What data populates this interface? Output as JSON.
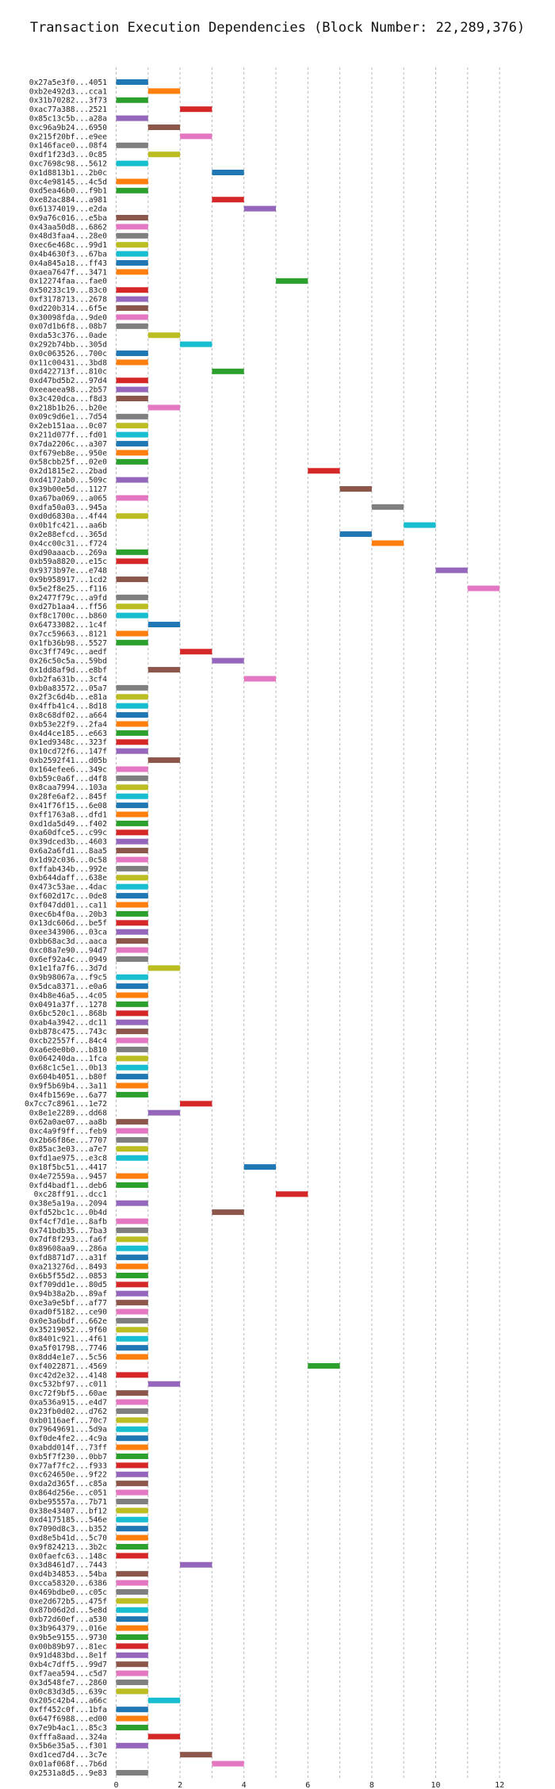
{
  "chart_data": {
    "type": "bar",
    "orientation": "horizontal",
    "title": "Transaction Execution Dependencies (Block Number: 22,289,376)",
    "xlabel": "",
    "ylabel": "",
    "xlim": [
      -0.7,
      12.8
    ],
    "xticks": [
      0,
      2,
      4,
      6,
      8,
      10,
      12
    ],
    "grid": true,
    "colors": [
      "#1f77b4",
      "#ff7f0e",
      "#2ca02c",
      "#d62728",
      "#9467bd",
      "#8c564b",
      "#e377c2",
      "#7f7f7f",
      "#bcbd22",
      "#17becf"
    ],
    "bars": [
      {
        "label": "0x27a5e3f0...4051",
        "start": 0,
        "end": 1
      },
      {
        "label": "0xb2e492d3...cca1",
        "start": 1,
        "end": 2
      },
      {
        "label": "0x31b70282...3f73",
        "start": 0,
        "end": 1
      },
      {
        "label": "0xac77a388...2521",
        "start": 2,
        "end": 3
      },
      {
        "label": "0x85c13c5b...a28a",
        "start": 0,
        "end": 1
      },
      {
        "label": "0xc96a9b24...6950",
        "start": 1,
        "end": 2
      },
      {
        "label": "0x215f20bf...e9ee",
        "start": 2,
        "end": 3
      },
      {
        "label": "0x146face0...08f4",
        "start": 0,
        "end": 1
      },
      {
        "label": "0xdf1f23d3...0c85",
        "start": 1,
        "end": 2
      },
      {
        "label": "0xc7698c98...5612",
        "start": 0,
        "end": 1
      },
      {
        "label": "0x1d8813b1...2b0c",
        "start": 3,
        "end": 4
      },
      {
        "label": "0xc4e98145...4c5d",
        "start": 0,
        "end": 1
      },
      {
        "label": "0xd5ea46b0...f9b1",
        "start": 0,
        "end": 1
      },
      {
        "label": "0xe82ac884...a981",
        "start": 3,
        "end": 4
      },
      {
        "label": "0x61374019...e2da",
        "start": 4,
        "end": 5
      },
      {
        "label": "0x9a76c016...e5ba",
        "start": 0,
        "end": 1
      },
      {
        "label": "0x43aa50d8...6862",
        "start": 0,
        "end": 1
      },
      {
        "label": "0x48d3faa4...28e0",
        "start": 0,
        "end": 1
      },
      {
        "label": "0xec6e468c...99d1",
        "start": 0,
        "end": 1
      },
      {
        "label": "0x4b4630f3...67ba",
        "start": 0,
        "end": 1
      },
      {
        "label": "0x4a845a18...ff43",
        "start": 0,
        "end": 1
      },
      {
        "label": "0xaea7647f...3471",
        "start": 0,
        "end": 1
      },
      {
        "label": "0x12274faa...fae0",
        "start": 5,
        "end": 6
      },
      {
        "label": "0x50233c19...83c0",
        "start": 0,
        "end": 1
      },
      {
        "label": "0xf3178713...2678",
        "start": 0,
        "end": 1
      },
      {
        "label": "0xd220b314...6f5e",
        "start": 0,
        "end": 1
      },
      {
        "label": "0x30098fda...9de0",
        "start": 0,
        "end": 1
      },
      {
        "label": "0x07d1b6f8...08b7",
        "start": 0,
        "end": 1
      },
      {
        "label": "0xda53c376...0ade",
        "start": 1,
        "end": 2
      },
      {
        "label": "0x292b74bb...305d",
        "start": 2,
        "end": 3
      },
      {
        "label": "0x0c063526...700c",
        "start": 0,
        "end": 1
      },
      {
        "label": "0x11c00431...3bd8",
        "start": 0,
        "end": 1
      },
      {
        "label": "0xd422713f...810c",
        "start": 3,
        "end": 4
      },
      {
        "label": "0xd47bd5b2...97d4",
        "start": 0,
        "end": 1
      },
      {
        "label": "0xeeaeea98...2b57",
        "start": 0,
        "end": 1
      },
      {
        "label": "0x3c420dca...f8d3",
        "start": 0,
        "end": 1
      },
      {
        "label": "0x218b1b26...b20e",
        "start": 1,
        "end": 2
      },
      {
        "label": "0x09c9d6e1...7d54",
        "start": 0,
        "end": 1
      },
      {
        "label": "0x2eb151aa...0c07",
        "start": 0,
        "end": 1
      },
      {
        "label": "0x211d077f...fd01",
        "start": 0,
        "end": 1
      },
      {
        "label": "0x7da2206c...a307",
        "start": 0,
        "end": 1
      },
      {
        "label": "0xf679eb8e...950e",
        "start": 0,
        "end": 1
      },
      {
        "label": "0x58cbb25f...02e0",
        "start": 0,
        "end": 1
      },
      {
        "label": "0x2d1815e2...2bad",
        "start": 6,
        "end": 7
      },
      {
        "label": "0xd4172ab0...509c",
        "start": 0,
        "end": 1
      },
      {
        "label": "0x39b00e5d...1127",
        "start": 7,
        "end": 8
      },
      {
        "label": "0xa67ba069...a065",
        "start": 0,
        "end": 1
      },
      {
        "label": "0xdfa50a03...945a",
        "start": 8,
        "end": 9
      },
      {
        "label": "0xd0d6830a...4f44",
        "start": 0,
        "end": 1
      },
      {
        "label": "0x0b1fc421...aa6b",
        "start": 9,
        "end": 10
      },
      {
        "label": "0x2e88efcd...365d",
        "start": 7,
        "end": 8
      },
      {
        "label": "0x4cc00c31...f724",
        "start": 8,
        "end": 9
      },
      {
        "label": "0xd90aaacb...269a",
        "start": 0,
        "end": 1
      },
      {
        "label": "0xb59a8820...e15c",
        "start": 0,
        "end": 1
      },
      {
        "label": "0x9373b97e...e748",
        "start": 10,
        "end": 11
      },
      {
        "label": "0x9b958917...1cd2",
        "start": 0,
        "end": 1
      },
      {
        "label": "0x5e2f8e25...f116",
        "start": 11,
        "end": 12
      },
      {
        "label": "0x2477f79c...a9fd",
        "start": 0,
        "end": 1
      },
      {
        "label": "0xd27b1aa4...ff56",
        "start": 0,
        "end": 1
      },
      {
        "label": "0xf8c1700c...b860",
        "start": 0,
        "end": 1
      },
      {
        "label": "0x64733082...1c4f",
        "start": 1,
        "end": 2
      },
      {
        "label": "0x7cc59663...8121",
        "start": 0,
        "end": 1
      },
      {
        "label": "0x1fb36b98...5527",
        "start": 0,
        "end": 1
      },
      {
        "label": "0xc3ff749c...aedf",
        "start": 2,
        "end": 3
      },
      {
        "label": "0x26c50c5a...59bd",
        "start": 3,
        "end": 4
      },
      {
        "label": "0x1dd8af9d...e8bf",
        "start": 1,
        "end": 2
      },
      {
        "label": "0xb2fa631b...3cf4",
        "start": 4,
        "end": 5
      },
      {
        "label": "0xb0a83572...05a7",
        "start": 0,
        "end": 1
      },
      {
        "label": "0x2f3c6d4b...e81a",
        "start": 0,
        "end": 1
      },
      {
        "label": "0x4ffb41c4...8d18",
        "start": 0,
        "end": 1
      },
      {
        "label": "0x8c68df02...a664",
        "start": 0,
        "end": 1
      },
      {
        "label": "0xb53e22f9...2fa4",
        "start": 0,
        "end": 1
      },
      {
        "label": "0x4d4ce185...e663",
        "start": 0,
        "end": 1
      },
      {
        "label": "0x1ed9348c...323f",
        "start": 0,
        "end": 1
      },
      {
        "label": "0x10cd72f6...147f",
        "start": 0,
        "end": 1
      },
      {
        "label": "0xb2592f41...d05b",
        "start": 1,
        "end": 2
      },
      {
        "label": "0x164efee6...349c",
        "start": 0,
        "end": 1
      },
      {
        "label": "0xb59c0a6f...d4f8",
        "start": 0,
        "end": 1
      },
      {
        "label": "0x8caa7994...103a",
        "start": 0,
        "end": 1
      },
      {
        "label": "0x28fe6af2...845f",
        "start": 0,
        "end": 1
      },
      {
        "label": "0x41f76f15...6e08",
        "start": 0,
        "end": 1
      },
      {
        "label": "0xff1763a8...dfd1",
        "start": 0,
        "end": 1
      },
      {
        "label": "0xd1da5d49...f402",
        "start": 0,
        "end": 1
      },
      {
        "label": "0xa60dfce5...c99c",
        "start": 0,
        "end": 1
      },
      {
        "label": "0x39dced3b...4603",
        "start": 0,
        "end": 1
      },
      {
        "label": "0x6a2a6fd1...8aa5",
        "start": 0,
        "end": 1
      },
      {
        "label": "0x1d92c036...0c58",
        "start": 0,
        "end": 1
      },
      {
        "label": "0xffab434b...992e",
        "start": 0,
        "end": 1
      },
      {
        "label": "0xb644daff...638e",
        "start": 0,
        "end": 1
      },
      {
        "label": "0x473c53ae...4dac",
        "start": 0,
        "end": 1
      },
      {
        "label": "0xf602d17c...0de8",
        "start": 0,
        "end": 1
      },
      {
        "label": "0xf047dd01...ca11",
        "start": 0,
        "end": 1
      },
      {
        "label": "0xec6b4f0a...20b3",
        "start": 0,
        "end": 1
      },
      {
        "label": "0x13dc606d...be5f",
        "start": 0,
        "end": 1
      },
      {
        "label": "0xee343906...03ca",
        "start": 0,
        "end": 1
      },
      {
        "label": "0xbb68ac3d...aaca",
        "start": 0,
        "end": 1
      },
      {
        "label": "0xc08a7e90...94d7",
        "start": 0,
        "end": 1
      },
      {
        "label": "0x6ef92a4c...0949",
        "start": 0,
        "end": 1
      },
      {
        "label": "0x1e1fa7f6...3d7d",
        "start": 1,
        "end": 2
      },
      {
        "label": "0x9b98067a...f9c5",
        "start": 0,
        "end": 1
      },
      {
        "label": "0x5dca8371...e0a6",
        "start": 0,
        "end": 1
      },
      {
        "label": "0x4b8e46a5...4c05",
        "start": 0,
        "end": 1
      },
      {
        "label": "0x0491a37f...1278",
        "start": 0,
        "end": 1
      },
      {
        "label": "0x6bc520c1...868b",
        "start": 0,
        "end": 1
      },
      {
        "label": "0xab4a3942...dc11",
        "start": 0,
        "end": 1
      },
      {
        "label": "0xb878c475...743c",
        "start": 0,
        "end": 1
      },
      {
        "label": "0xcb22557f...84c4",
        "start": 0,
        "end": 1
      },
      {
        "label": "0xa6e0e0b0...b810",
        "start": 0,
        "end": 1
      },
      {
        "label": "0x064240da...1fca",
        "start": 0,
        "end": 1
      },
      {
        "label": "0x68c1c5e1...0b13",
        "start": 0,
        "end": 1
      },
      {
        "label": "0x604b4051...b80f",
        "start": 0,
        "end": 1
      },
      {
        "label": "0x9f5b69b4...3a11",
        "start": 0,
        "end": 1
      },
      {
        "label": "0x4fb1569e...6a77",
        "start": 0,
        "end": 1
      },
      {
        "label": "0x7cc7c8961...1e72",
        "start": 2,
        "end": 3
      },
      {
        "label": "0x8e1e2289...dd68",
        "start": 1,
        "end": 2
      },
      {
        "label": "0x62a0ae07...aa8b",
        "start": 0,
        "end": 1
      },
      {
        "label": "0xc4a9f9ff...feb9",
        "start": 0,
        "end": 1
      },
      {
        "label": "0x2b66f86e...7707",
        "start": 0,
        "end": 1
      },
      {
        "label": "0x85ac3e03...a7e7",
        "start": 0,
        "end": 1
      },
      {
        "label": "0xfd1ae975...e3c8",
        "start": 0,
        "end": 1
      },
      {
        "label": "0x18f5bc51...4417",
        "start": 4,
        "end": 5
      },
      {
        "label": "0x4e72559a...9457",
        "start": 0,
        "end": 1
      },
      {
        "label": "0xfd4badf1...deb6",
        "start": 0,
        "end": 1
      },
      {
        "label": "0xc28ff91...dcc1",
        "start": 5,
        "end": 6
      },
      {
        "label": "0x38e5a19a...2094",
        "start": 0,
        "end": 1
      },
      {
        "label": "0xfd52bc1c...0b4d",
        "start": 3,
        "end": 4
      },
      {
        "label": "0xf4cf7d1e...8afb",
        "start": 0,
        "end": 1
      },
      {
        "label": "0x741bdb35...7ba3",
        "start": 0,
        "end": 1
      },
      {
        "label": "0x7df8f293...fa6f",
        "start": 0,
        "end": 1
      },
      {
        "label": "0x89608aa9...286a",
        "start": 0,
        "end": 1
      },
      {
        "label": "0xfd8871d7...a31f",
        "start": 0,
        "end": 1
      },
      {
        "label": "0xa213276d...8493",
        "start": 0,
        "end": 1
      },
      {
        "label": "0x6b5f55d2...0853",
        "start": 0,
        "end": 1
      },
      {
        "label": "0xf709dd1e...80d5",
        "start": 0,
        "end": 1
      },
      {
        "label": "0x94b38a2b...89af",
        "start": 0,
        "end": 1
      },
      {
        "label": "0xe3a9e5bf...af77",
        "start": 0,
        "end": 1
      },
      {
        "label": "0xad0f5182...ce90",
        "start": 0,
        "end": 1
      },
      {
        "label": "0x0e3a6bdf...662e",
        "start": 0,
        "end": 1
      },
      {
        "label": "0x35219052...9f60",
        "start": 0,
        "end": 1
      },
      {
        "label": "0x8401c921...4f61",
        "start": 0,
        "end": 1
      },
      {
        "label": "0xa5f01798...7746",
        "start": 0,
        "end": 1
      },
      {
        "label": "0x8dd4e1e7...5c56",
        "start": 0,
        "end": 1
      },
      {
        "label": "0xf4022871...4569",
        "start": 6,
        "end": 7
      },
      {
        "label": "0xc42d2e32...4148",
        "start": 0,
        "end": 1
      },
      {
        "label": "0xc532bf97...c011",
        "start": 1,
        "end": 2
      },
      {
        "label": "0xc72f9bf5...60ae",
        "start": 0,
        "end": 1
      },
      {
        "label": "0xa536a915...e4d7",
        "start": 0,
        "end": 1
      },
      {
        "label": "0x23fb0d02...d762",
        "start": 0,
        "end": 1
      },
      {
        "label": "0xb0116aef...70c7",
        "start": 0,
        "end": 1
      },
      {
        "label": "0x79649691...5d9a",
        "start": 0,
        "end": 1
      },
      {
        "label": "0xf0de4fe2...4c9a",
        "start": 0,
        "end": 1
      },
      {
        "label": "0xabdd014f...73ff",
        "start": 0,
        "end": 1
      },
      {
        "label": "0xb5f7f230...0bb7",
        "start": 0,
        "end": 1
      },
      {
        "label": "0x77af7fc2...f933",
        "start": 0,
        "end": 1
      },
      {
        "label": "0xc624650e...9f22",
        "start": 0,
        "end": 1
      },
      {
        "label": "0xda2d365f...c85a",
        "start": 0,
        "end": 1
      },
      {
        "label": "0x864d256e...c051",
        "start": 0,
        "end": 1
      },
      {
        "label": "0xbe95557a...7b71",
        "start": 0,
        "end": 1
      },
      {
        "label": "0x38e43407...bf12",
        "start": 0,
        "end": 1
      },
      {
        "label": "0xd4175185...546e",
        "start": 0,
        "end": 1
      },
      {
        "label": "0x7090d8c3...b352",
        "start": 0,
        "end": 1
      },
      {
        "label": "0xd8e5b41d...5c70",
        "start": 0,
        "end": 1
      },
      {
        "label": "0x9f824213...3b2c",
        "start": 0,
        "end": 1
      },
      {
        "label": "0x0faefc63...148c",
        "start": 0,
        "end": 1
      },
      {
        "label": "0x3d8461d7...7443",
        "start": 2,
        "end": 3
      },
      {
        "label": "0xd4b34853...54ba",
        "start": 0,
        "end": 1
      },
      {
        "label": "0xcca58320...6386",
        "start": 0,
        "end": 1
      },
      {
        "label": "0x469bdbe0...c05c",
        "start": 0,
        "end": 1
      },
      {
        "label": "0xe2d672b5...475f",
        "start": 0,
        "end": 1
      },
      {
        "label": "0x87b06d2d...5e8d",
        "start": 0,
        "end": 1
      },
      {
        "label": "0xb72d60ef...a530",
        "start": 0,
        "end": 1
      },
      {
        "label": "0x3b964379...016e",
        "start": 0,
        "end": 1
      },
      {
        "label": "0x9b5e9155...9730",
        "start": 0,
        "end": 1
      },
      {
        "label": "0x00b89b97...81ec",
        "start": 0,
        "end": 1
      },
      {
        "label": "0x91d483bd...8e1f",
        "start": 0,
        "end": 1
      },
      {
        "label": "0xb4c7dff5...99d7",
        "start": 0,
        "end": 1
      },
      {
        "label": "0xf7aea594...c5d7",
        "start": 0,
        "end": 1
      },
      {
        "label": "0x3d548fe7...2860",
        "start": 0,
        "end": 1
      },
      {
        "label": "0x0c83d3d5...639c",
        "start": 0,
        "end": 1
      },
      {
        "label": "0x205c42b4...a66c",
        "start": 1,
        "end": 2
      },
      {
        "label": "0xff452c0f...1bfa",
        "start": 0,
        "end": 1
      },
      {
        "label": "0x647f6988...ed00",
        "start": 0,
        "end": 1
      },
      {
        "label": "0x7e9b4ac1...85c3",
        "start": 0,
        "end": 1
      },
      {
        "label": "0xfffa8aad...324a",
        "start": 1,
        "end": 2
      },
      {
        "label": "0x5b6e35a5...f301",
        "start": 0,
        "end": 1
      },
      {
        "label": "0xd1ced7d4...3c7e",
        "start": 2,
        "end": 3
      },
      {
        "label": "0x01af068f...7b6d",
        "start": 3,
        "end": 4
      },
      {
        "label": "0x2531a8d5...9e83",
        "start": 0,
        "end": 1
      }
    ]
  }
}
